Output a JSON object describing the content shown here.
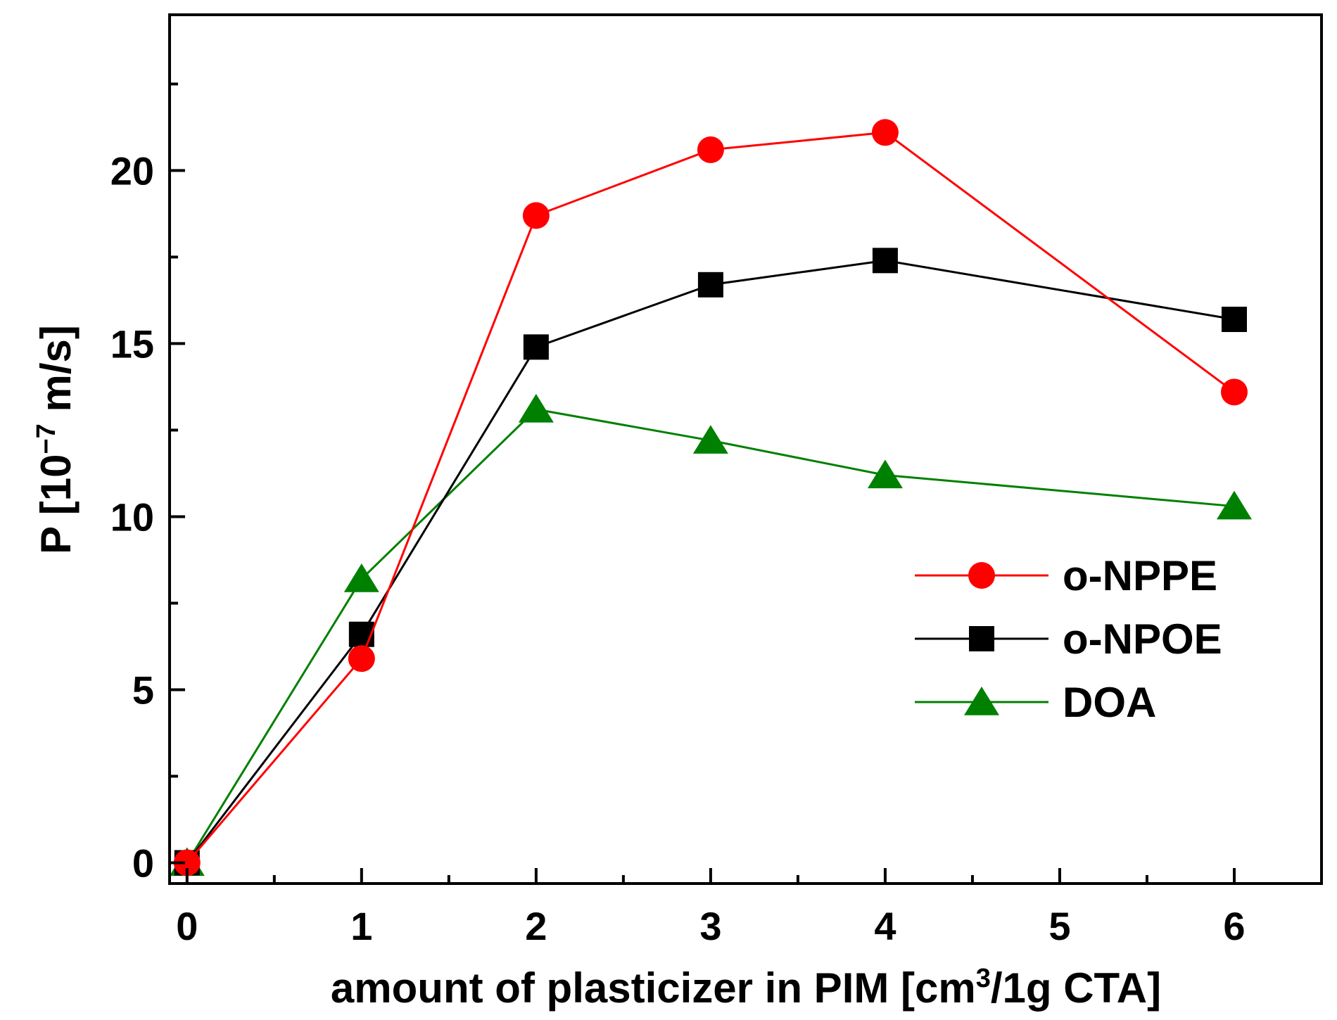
{
  "chart_data": {
    "type": "line",
    "title": "",
    "xlabel": {
      "main": "amount of plasticizer in PIM [cm",
      "sup": "3",
      "rest": "/1g CTA]"
    },
    "ylabel": {
      "main": "P [10",
      "sup": "−7",
      "rest": " m/s]"
    },
    "xlim": [
      -0.1,
      6.5
    ],
    "ylim": [
      -0.6,
      24.5
    ],
    "x_ticks": [
      0,
      1,
      2,
      3,
      4,
      5,
      6
    ],
    "x_tick_labels": [
      "0",
      "1",
      "2",
      "3",
      "4",
      "5",
      "6"
    ],
    "x_minor_ticks": [
      0.5,
      1.5,
      2.5,
      3.5,
      4.5,
      5.5
    ],
    "y_ticks": [
      0,
      5,
      10,
      15,
      20
    ],
    "y_tick_labels": [
      "0",
      "5",
      "10",
      "15",
      "20"
    ],
    "y_minor_ticks": [
      2.5,
      7.5,
      12.5,
      17.5,
      22.5
    ],
    "grid": false,
    "legend_position": "center-right",
    "series": [
      {
        "name": "o-NPPE",
        "color": "#ff0000",
        "marker": "circle",
        "x": [
          0,
          1,
          2,
          3,
          4,
          6
        ],
        "y": [
          0,
          5.9,
          18.7,
          20.6,
          21.1,
          13.6
        ]
      },
      {
        "name": "o-NPOE",
        "color": "#000000",
        "marker": "square",
        "x": [
          0,
          1,
          2,
          3,
          4,
          6
        ],
        "y": [
          0,
          6.6,
          14.9,
          16.7,
          17.4,
          15.7
        ]
      },
      {
        "name": "DOA",
        "color": "#008000",
        "marker": "triangle",
        "x": [
          0,
          1,
          2,
          3,
          4,
          6
        ],
        "y": [
          0,
          8.2,
          13.1,
          12.2,
          11.2,
          10.3
        ]
      }
    ]
  }
}
